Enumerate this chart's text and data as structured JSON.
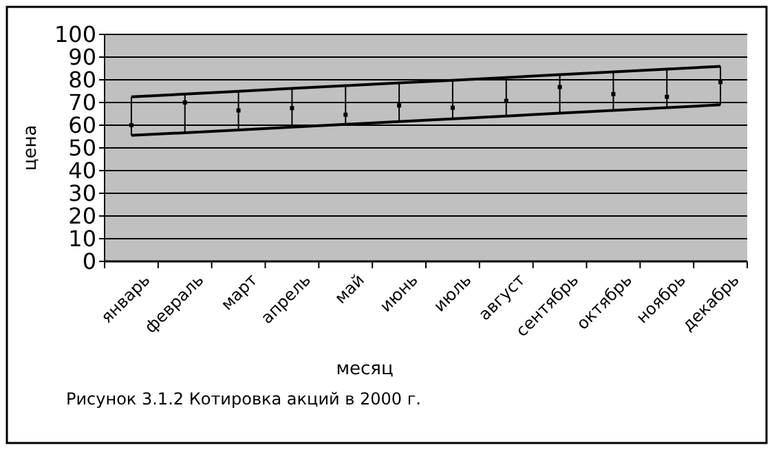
{
  "chart_data": {
    "type": "line",
    "xlabel": "месяц",
    "ylabel": "цена",
    "categories": [
      "январь",
      "февраль",
      "март",
      "апрель",
      "май",
      "июнь",
      "июль",
      "август",
      "сентябрь",
      "октябрь",
      "ноябрь",
      "декабрь"
    ],
    "series": [
      {
        "color": "#000000",
        "marker": "none",
        "values": [
          72.5,
          73.7,
          74.9,
          76.2,
          77.4,
          78.6,
          79.8,
          81.0,
          82.3,
          83.5,
          84.7,
          85.9
        ]
      },
      {
        "color": "#000000",
        "marker": "none",
        "values": [
          55.5,
          56.7,
          57.9,
          59.2,
          60.4,
          61.6,
          62.8,
          64.0,
          65.3,
          66.5,
          67.7,
          69.0
        ]
      },
      {
        "type": "scatter",
        "color": "#000000",
        "marker": "square",
        "values": [
          60,
          70,
          66.5,
          67.5,
          64.6,
          68.7,
          67.7,
          70.7,
          76.8,
          73.7,
          72.5,
          79
        ],
        "errors": [
          [
            55.5,
            72.5
          ],
          [
            56.7,
            73.7
          ],
          [
            57.9,
            74.9
          ],
          [
            59.2,
            76.2
          ],
          [
            60.4,
            77.4
          ],
          [
            61.6,
            78.6
          ],
          [
            62.8,
            79.8
          ],
          [
            64.0,
            81.0
          ],
          [
            65.3,
            82.3
          ],
          [
            66.5,
            83.5
          ],
          [
            67.7,
            84.7
          ],
          [
            69.0,
            85.9
          ]
        ]
      }
    ],
    "ylim": [
      0,
      100
    ],
    "yticks": [
      0,
      10,
      20,
      30,
      40,
      50,
      60,
      70,
      80,
      90,
      100
    ],
    "grid": "y",
    "annotations": [
      "Рисунок 3.1.2     Котировка акций в 2000 г."
    ]
  }
}
